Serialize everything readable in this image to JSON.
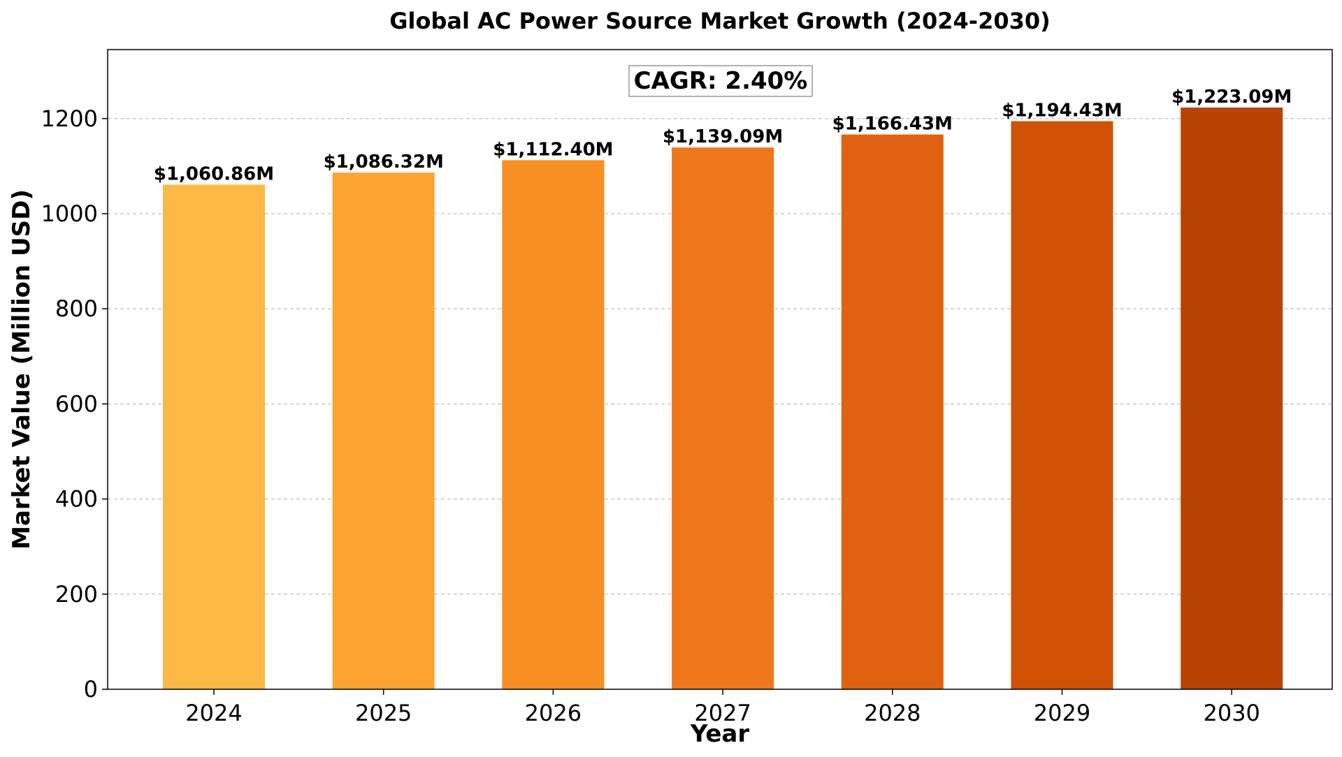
{
  "chart_data": {
    "type": "bar",
    "title": "Global AC Power Source Market Growth (2024-2030)",
    "xlabel": "Year",
    "ylabel": "Market Value (Million USD)",
    "categories": [
      "2024",
      "2025",
      "2026",
      "2027",
      "2028",
      "2029",
      "2030"
    ],
    "values": [
      1060.86,
      1086.32,
      1112.4,
      1139.09,
      1166.43,
      1194.43,
      1223.09
    ],
    "data_labels": [
      "$1,060.86M",
      "$1,086.32M",
      "$1,112.40M",
      "$1,139.09M",
      "$1,166.43M",
      "$1,194.43M",
      "$1,223.09M"
    ],
    "bar_colors": [
      "#FDB945",
      "#FCA333",
      "#F78F25",
      "#EE771B",
      "#E06211",
      "#D15105",
      "#B84305"
    ],
    "ylim": [
      0,
      1345
    ],
    "yticks": [
      0,
      200,
      400,
      600,
      800,
      1000,
      1200
    ],
    "grid": "y-dashed",
    "annotation": "CAGR: 2.40%"
  }
}
